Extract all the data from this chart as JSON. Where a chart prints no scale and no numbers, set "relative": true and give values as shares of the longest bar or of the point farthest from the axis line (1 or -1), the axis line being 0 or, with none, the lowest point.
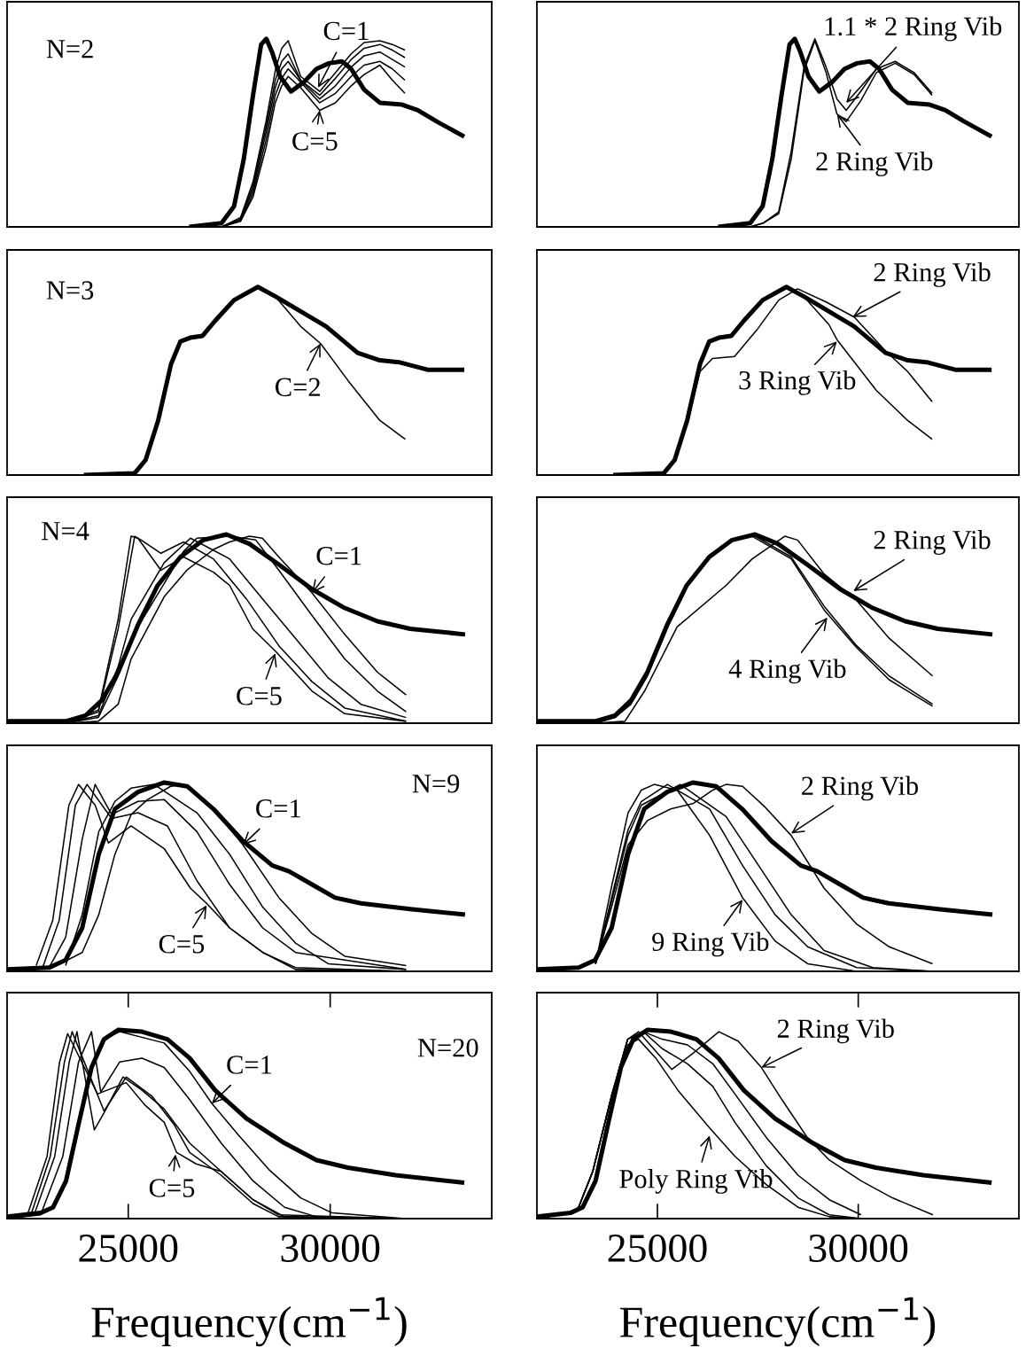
{
  "chart_data": [
    {
      "type": "line",
      "relative": true,
      "xlim": [
        22000,
        34000
      ],
      "tick_labels": false,
      "annotations": [
        "N=2",
        {
          "text": "C=1",
          "x": 29700,
          "y": 0.74
        },
        {
          "text": "C=5",
          "x": 29740,
          "y": 0.62
        }
      ],
      "series": [
        {
          "color": "#000000",
          "x": [
            26510,
            27310,
            27620,
            27860,
            28090,
            28290,
            28420,
            28560,
            28760,
            29030,
            29350,
            29660,
            29970,
            30290,
            30520,
            30840,
            31230,
            31780,
            32170,
            32640,
            33320
          ],
          "values": [
            0,
            0.02,
            0.11,
            0.36,
            0.7,
            0.97,
            1.0,
            0.93,
            0.8,
            0.72,
            0.77,
            0.84,
            0.87,
            0.88,
            0.84,
            0.73,
            0.66,
            0.65,
            0.62,
            0.56,
            0.48
          ]
        },
        {
          "color": "#000000",
          "x": [
            27310,
            27780,
            28090,
            28410,
            28640,
            28800,
            28960,
            29270,
            29740,
            30130,
            30520,
            30840,
            31230,
            31540,
            31850
          ],
          "values": [
            0,
            0.05,
            0.24,
            0.56,
            0.83,
            0.95,
            0.99,
            0.8,
            0.72,
            0.82,
            0.92,
            0.98,
            0.99,
            0.97,
            0.94
          ]
        },
        {
          "color": "#000000",
          "x": [
            27310,
            27780,
            28090,
            28410,
            28640,
            28800,
            28960,
            29270,
            29740,
            30130,
            30520,
            30840,
            31230,
            31540,
            31850
          ],
          "values": [
            0,
            0.04,
            0.22,
            0.53,
            0.78,
            0.88,
            0.92,
            0.78,
            0.7,
            0.79,
            0.89,
            0.95,
            0.97,
            0.94,
            0.9
          ]
        },
        {
          "color": "#000000",
          "x": [
            27310,
            27780,
            28090,
            28410,
            28640,
            28800,
            28960,
            29270,
            29740,
            30130,
            30520,
            30840,
            31230,
            31540,
            31850
          ],
          "values": [
            0,
            0.04,
            0.2,
            0.5,
            0.74,
            0.84,
            0.88,
            0.78,
            0.68,
            0.75,
            0.85,
            0.91,
            0.93,
            0.89,
            0.85
          ]
        },
        {
          "color": "#000000",
          "x": [
            27310,
            27780,
            28090,
            28410,
            28640,
            28800,
            28960,
            29270,
            29740,
            30130,
            30520,
            30840,
            31230,
            31540,
            31850
          ],
          "values": [
            0,
            0.03,
            0.18,
            0.46,
            0.7,
            0.79,
            0.84,
            0.77,
            0.66,
            0.71,
            0.8,
            0.86,
            0.88,
            0.84,
            0.78
          ]
        },
        {
          "color": "#000000",
          "x": [
            27310,
            27780,
            28090,
            28410,
            28640,
            28800,
            28960,
            29270,
            29740,
            30130,
            30520,
            30840,
            31230,
            31540,
            31850
          ],
          "values": [
            0,
            0.03,
            0.16,
            0.42,
            0.66,
            0.75,
            0.8,
            0.74,
            0.62,
            0.66,
            0.75,
            0.81,
            0.86,
            0.78,
            0.71
          ]
        }
      ]
    },
    {
      "type": "line",
      "relative": true,
      "xlim": [
        22000,
        34000
      ],
      "tick_labels": false,
      "annotations": [
        {
          "text": "1.1 * 2 Ring Vib",
          "x": 29700,
          "y": 0.66
        },
        {
          "text": "2 Ring Vib",
          "x": 29470,
          "y": 0.6
        }
      ],
      "series": [
        {
          "color": "#000000",
          "x": [
            26510,
            27310,
            27620,
            27860,
            28090,
            28290,
            28420,
            28560,
            28760,
            29030,
            29350,
            29660,
            29970,
            30290,
            30520,
            30840,
            31230,
            31780,
            32170,
            32640,
            33320
          ],
          "values": [
            0,
            0.02,
            0.11,
            0.36,
            0.7,
            0.97,
            1.0,
            0.93,
            0.8,
            0.72,
            0.77,
            0.84,
            0.87,
            0.88,
            0.84,
            0.73,
            0.66,
            0.65,
            0.62,
            0.56,
            0.48
          ]
        },
        {
          "color": "#000000",
          "x": [
            27310,
            27630,
            28020,
            28330,
            28650,
            28920,
            29200,
            29470,
            29700,
            30060,
            30450,
            30920,
            31390,
            31840
          ],
          "values": [
            0,
            0.02,
            0.08,
            0.4,
            0.85,
            1.0,
            0.85,
            0.68,
            0.62,
            0.72,
            0.84,
            0.88,
            0.82,
            0.71
          ]
        },
        {
          "color": "#000000",
          "x": [
            27310,
            27630,
            28020,
            28330,
            28650,
            28920,
            29200,
            29470,
            29700,
            30060,
            30450,
            30920,
            31390,
            31840
          ],
          "values": [
            0,
            0.02,
            0.07,
            0.36,
            0.83,
            0.99,
            0.82,
            0.6,
            0.56,
            0.67,
            0.82,
            0.87,
            0.81,
            0.7
          ]
        }
      ]
    },
    {
      "type": "line",
      "relative": true,
      "xlim": [
        22000,
        34000
      ],
      "tick_labels": false,
      "annotations": [
        "N=3",
        {
          "text": "C=2",
          "x": 29760,
          "y": 0.7
        }
      ],
      "series": [
        {
          "color": "#000000",
          "x": [
            23900,
            25160,
            25430,
            25740,
            26060,
            26290,
            26530,
            26840,
            27150,
            27620,
            28210,
            28640,
            29270,
            29900,
            30680,
            31230,
            31700,
            32410,
            33320
          ],
          "values": [
            0,
            0.01,
            0.08,
            0.29,
            0.59,
            0.71,
            0.73,
            0.74,
            0.82,
            0.93,
            1.0,
            0.95,
            0.87,
            0.79,
            0.65,
            0.61,
            0.6,
            0.56,
            0.56
          ]
        },
        {
          "color": "#000000",
          "x": [
            23900,
            25160,
            25430,
            25740,
            26060,
            26290,
            26530,
            26840,
            27150,
            27620,
            28210,
            28640,
            29270,
            29760,
            30450,
            31230,
            31860
          ],
          "values": [
            0,
            0.01,
            0.08,
            0.29,
            0.59,
            0.71,
            0.73,
            0.74,
            0.82,
            0.93,
            1.0,
            0.95,
            0.79,
            0.7,
            0.5,
            0.29,
            0.19
          ]
        }
      ]
    },
    {
      "type": "line",
      "relative": true,
      "xlim": [
        22000,
        34000
      ],
      "tick_labels": false,
      "annotations": [
        {
          "text": "2 Ring Vib",
          "x": 29860,
          "y": 0.84
        },
        {
          "text": "3 Ring Vib",
          "x": 29470,
          "y": 0.71
        }
      ],
      "series": [
        {
          "color": "#000000",
          "x": [
            23900,
            25160,
            25430,
            25740,
            26060,
            26290,
            26530,
            26840,
            27150,
            27620,
            28210,
            28640,
            29270,
            29900,
            30680,
            31230,
            31700,
            32410,
            33320
          ],
          "values": [
            0,
            0.01,
            0.08,
            0.29,
            0.59,
            0.71,
            0.73,
            0.74,
            0.82,
            0.93,
            1.0,
            0.95,
            0.87,
            0.79,
            0.65,
            0.61,
            0.6,
            0.56,
            0.56
          ]
        },
        {
          "color": "#000000",
          "x": [
            23900,
            25160,
            25430,
            25750,
            26060,
            26370,
            26920,
            27470,
            28020,
            28490,
            29200,
            29900,
            30680,
            31230,
            31840
          ],
          "values": [
            0,
            0.01,
            0.08,
            0.29,
            0.55,
            0.62,
            0.63,
            0.77,
            0.93,
            0.99,
            0.92,
            0.84,
            0.66,
            0.55,
            0.39
          ]
        },
        {
          "color": "#000000",
          "x": [
            23900,
            25160,
            25430,
            25740,
            26060,
            26290,
            26530,
            26840,
            27150,
            27620,
            28210,
            28640,
            29270,
            29470,
            30450,
            31230,
            31840
          ],
          "values": [
            0,
            0.01,
            0.08,
            0.29,
            0.59,
            0.71,
            0.73,
            0.74,
            0.82,
            0.93,
            1.0,
            0.95,
            0.8,
            0.72,
            0.45,
            0.29,
            0.19
          ]
        }
      ]
    },
    {
      "type": "line",
      "relative": true,
      "xlim": [
        22000,
        34000
      ],
      "tick_labels": false,
      "annotations": [
        "N=4",
        {
          "text": "C=1",
          "x": 29550,
          "y": 0.69
        },
        {
          "text": "C=5",
          "x": 28640,
          "y": 0.37
        }
      ],
      "series": [
        {
          "color": "#000000",
          "x": [
            22000,
            23450,
            23940,
            24340,
            24750,
            25240,
            25730,
            26290,
            26860,
            27430,
            28000,
            28730,
            29550,
            30360,
            31170,
            31980,
            33340
          ],
          "values": [
            0.01,
            0.01,
            0.04,
            0.12,
            0.27,
            0.52,
            0.73,
            0.88,
            0.97,
            1.0,
            0.95,
            0.84,
            0.71,
            0.61,
            0.54,
            0.5,
            0.47
          ]
        },
        {
          "color": "#000000",
          "x": [
            23450,
            24260,
            24750,
            25070,
            25890,
            26450,
            27110,
            27510,
            28000,
            28320,
            28730,
            29550,
            30360,
            31170,
            31880
          ],
          "values": [
            0,
            0.01,
            0.1,
            0.34,
            0.67,
            0.81,
            0.92,
            0.96,
            0.99,
            0.98,
            0.88,
            0.69,
            0.47,
            0.27,
            0.15
          ]
        },
        {
          "color": "#000000",
          "x": [
            23450,
            24260,
            24750,
            25070,
            25890,
            26370,
            26700,
            27510,
            28160,
            28730,
            29550,
            30360,
            31170,
            31880
          ],
          "values": [
            0,
            0.03,
            0.25,
            0.45,
            0.74,
            0.91,
            0.98,
            0.99,
            0.97,
            0.81,
            0.57,
            0.34,
            0.17,
            0.06
          ]
        },
        {
          "color": "#000000",
          "x": [
            23450,
            24260,
            24750,
            25070,
            25890,
            26540,
            27510,
            28320,
            29140,
            29950,
            30760,
            31880
          ],
          "values": [
            0,
            0.04,
            0.3,
            0.55,
            0.85,
            0.98,
            0.87,
            0.66,
            0.45,
            0.24,
            0.1,
            0.03
          ]
        },
        {
          "color": "#000000",
          "x": [
            23450,
            24260,
            24750,
            25160,
            25320,
            25810,
            26370,
            27110,
            27920,
            28730,
            29550,
            30360,
            31880
          ],
          "values": [
            0,
            0.06,
            0.5,
            0.99,
            0.97,
            0.9,
            0.96,
            0.87,
            0.66,
            0.41,
            0.22,
            0.08,
            0.01
          ]
        },
        {
          "color": "#000000",
          "x": [
            23450,
            24260,
            24750,
            25070,
            25240,
            25810,
            26370,
            27110,
            27510,
            28080,
            28650,
            29550,
            30360,
            31880
          ],
          "values": [
            0,
            0.07,
            0.55,
            0.99,
            0.98,
            0.81,
            0.88,
            0.8,
            0.73,
            0.5,
            0.38,
            0.17,
            0.05,
            0.01
          ]
        }
      ]
    },
    {
      "type": "line",
      "relative": true,
      "xlim": [
        22000,
        34000
      ],
      "tick_labels": false,
      "annotations": [
        {
          "text": "2 Ring Vib",
          "x": 29880,
          "y": 0.7
        },
        {
          "text": "4 Ring Vib",
          "x": 29230,
          "y": 0.56
        }
      ],
      "series": [
        {
          "color": "#000000",
          "x": [
            22000,
            23450,
            23940,
            24340,
            24750,
            25240,
            25730,
            26290,
            26860,
            27430,
            28000,
            28730,
            29550,
            30360,
            31170,
            31980,
            33340
          ],
          "values": [
            0.01,
            0.01,
            0.04,
            0.12,
            0.27,
            0.52,
            0.73,
            0.88,
            0.97,
            1.0,
            0.95,
            0.84,
            0.71,
            0.61,
            0.54,
            0.5,
            0.47
          ]
        },
        {
          "color": "#000000",
          "x": [
            23450,
            24190,
            24680,
            25490,
            26710,
            27360,
            28170,
            28490,
            29150,
            29960,
            30770,
            31850
          ],
          "values": [
            0,
            0.01,
            0.17,
            0.51,
            0.73,
            0.87,
            0.99,
            0.97,
            0.79,
            0.65,
            0.45,
            0.25
          ]
        },
        {
          "color": "#000000",
          "x": [
            23450,
            23940,
            24340,
            24750,
            25240,
            25730,
            26290,
            26860,
            27360,
            28330,
            29150,
            29960,
            30770,
            31850
          ],
          "values": [
            0,
            0.03,
            0.11,
            0.27,
            0.52,
            0.74,
            0.89,
            0.97,
            1.0,
            0.88,
            0.62,
            0.41,
            0.25,
            0.1
          ]
        },
        {
          "color": "#000000",
          "x": [
            23450,
            23940,
            24340,
            24750,
            25240,
            25730,
            26290,
            26860,
            27360,
            28330,
            29150,
            29960,
            30770,
            31850
          ],
          "values": [
            0,
            0.03,
            0.1,
            0.25,
            0.5,
            0.72,
            0.88,
            0.97,
            0.99,
            0.87,
            0.6,
            0.4,
            0.23,
            0.09
          ]
        }
      ]
    },
    {
      "type": "line",
      "relative": true,
      "xlim": [
        22000,
        34000
      ],
      "tick_labels": false,
      "annotations": [
        "N=9",
        {
          "text": "C=1",
          "x": 27840,
          "y": 0.67
        },
        {
          "text": "C=5",
          "x": 26940,
          "y": 0.35
        }
      ],
      "series": [
        {
          "color": "#000000",
          "x": [
            22000,
            23040,
            23450,
            23860,
            24270,
            24670,
            25240,
            25890,
            26460,
            27110,
            27840,
            28570,
            28980,
            29550,
            30120,
            30760,
            31980,
            33340
          ],
          "values": [
            0.01,
            0.02,
            0.06,
            0.23,
            0.62,
            0.86,
            0.95,
            1.0,
            0.98,
            0.86,
            0.69,
            0.56,
            0.53,
            0.46,
            0.39,
            0.36,
            0.33,
            0.3
          ]
        },
        {
          "color": "#000000",
          "x": [
            23040,
            23860,
            24270,
            24670,
            25070,
            25480,
            26050,
            26380,
            27110,
            27840,
            28730,
            29550,
            30360,
            31880
          ],
          "values": [
            0.01,
            0.1,
            0.3,
            0.62,
            0.83,
            0.91,
            0.98,
            0.99,
            0.86,
            0.67,
            0.39,
            0.2,
            0.08,
            0.03
          ]
        },
        {
          "color": "#000000",
          "x": [
            23450,
            23860,
            24270,
            24670,
            25070,
            25640,
            26700,
            27510,
            28330,
            29140,
            29950,
            31880
          ],
          "values": [
            0.03,
            0.3,
            0.74,
            0.9,
            0.97,
            0.99,
            0.84,
            0.62,
            0.34,
            0.15,
            0.04,
            0.01
          ]
        },
        {
          "color": "#000000",
          "x": [
            23040,
            23450,
            23860,
            24180,
            24590,
            25240,
            25890,
            26700,
            27510,
            28330,
            29140,
            31880
          ],
          "values": [
            0.02,
            0.18,
            0.7,
            0.99,
            0.83,
            0.9,
            0.91,
            0.74,
            0.46,
            0.23,
            0.1,
            0.01
          ]
        },
        {
          "color": "#000000",
          "x": [
            22880,
            23290,
            23690,
            23980,
            24590,
            25240,
            25970,
            26700,
            27510,
            28330,
            29140,
            31880
          ],
          "values": [
            0.02,
            0.27,
            0.88,
            0.99,
            0.81,
            0.84,
            0.77,
            0.48,
            0.23,
            0.1,
            0.02,
            0
          ]
        },
        {
          "color": "#000000",
          "x": [
            22720,
            23130,
            23530,
            23770,
            24180,
            24510,
            25070,
            25890,
            26540,
            26940,
            27510,
            28330,
            29140,
            31880
          ],
          "values": [
            0.03,
            0.27,
            0.88,
            0.99,
            0.88,
            0.68,
            0.77,
            0.65,
            0.44,
            0.36,
            0.23,
            0.1,
            0.01,
            0
          ]
        }
      ]
    },
    {
      "type": "line",
      "relative": true,
      "xlim": [
        22000,
        34000
      ],
      "tick_labels": false,
      "annotations": [
        {
          "text": "2 Ring Vib",
          "x": 28330,
          "y": 0.73
        },
        {
          "text": "9 Ring Vib",
          "x": 27120,
          "y": 0.38
        }
      ],
      "series": [
        {
          "color": "#000000",
          "x": [
            22000,
            23040,
            23450,
            23860,
            24270,
            24670,
            25240,
            25890,
            26460,
            27110,
            27840,
            28570,
            28980,
            29550,
            30120,
            30760,
            31980,
            33340
          ],
          "values": [
            0.01,
            0.02,
            0.06,
            0.23,
            0.62,
            0.86,
            0.95,
            1.0,
            0.98,
            0.86,
            0.69,
            0.56,
            0.53,
            0.46,
            0.39,
            0.36,
            0.33,
            0.3
          ]
        },
        {
          "color": "#000000",
          "x": [
            23460,
            23870,
            24270,
            24760,
            25330,
            25900,
            26380,
            26710,
            27120,
            27680,
            28330,
            29150,
            29960,
            30770,
            31850
          ],
          "values": [
            0.04,
            0.35,
            0.67,
            0.8,
            0.86,
            0.89,
            0.96,
            0.99,
            0.98,
            0.87,
            0.72,
            0.44,
            0.25,
            0.13,
            0.04
          ]
        },
        {
          "color": "#000000",
          "x": [
            23460,
            23870,
            24270,
            24600,
            24920,
            25490,
            26300,
            27120,
            27930,
            28740,
            29960
          ],
          "values": [
            0.04,
            0.46,
            0.84,
            0.96,
            0.99,
            0.96,
            0.72,
            0.39,
            0.16,
            0.04,
            0
          ]
        },
        {
          "color": "#000000",
          "x": [
            23460,
            23870,
            24270,
            24600,
            25250,
            26300,
            27120,
            27930,
            28740,
            29960,
            31850
          ],
          "values": [
            0.04,
            0.4,
            0.75,
            0.9,
            0.99,
            0.86,
            0.56,
            0.3,
            0.13,
            0.02,
            0
          ]
        },
        {
          "color": "#000000",
          "x": [
            23460,
            23870,
            24270,
            24600,
            25570,
            26710,
            27520,
            28330,
            29150,
            30360,
            31850
          ],
          "values": [
            0.04,
            0.38,
            0.72,
            0.88,
            0.99,
            0.82,
            0.56,
            0.3,
            0.11,
            0.02,
            0
          ]
        }
      ]
    },
    {
      "type": "line",
      "relative": true,
      "xlim": [
        22000,
        34000
      ],
      "tick_labels": "x",
      "xlabel": "Frequency(cm$^{−1}$)",
      "xticks": [
        25000,
        30000
      ],
      "annotations": [
        "N=20",
        {
          "text": "C=1",
          "x": 27070,
          "y": 0.61
        },
        {
          "text": "C=5",
          "x": 26170,
          "y": 0.34
        }
      ],
      "series": [
        {
          "color": "#000000",
          "x": [
            22000,
            22830,
            23140,
            23460,
            23770,
            24090,
            24400,
            24750,
            25340,
            25970,
            26520,
            27150,
            27930,
            28870,
            29660,
            30440,
            31620,
            33320
          ],
          "values": [
            0.01,
            0.03,
            0.06,
            0.2,
            0.5,
            0.8,
            0.95,
            1.0,
            0.99,
            0.95,
            0.85,
            0.68,
            0.53,
            0.4,
            0.31,
            0.27,
            0.23,
            0.19
          ]
        },
        {
          "color": "#000000",
          "x": [
            22000,
            22830,
            23140,
            23460,
            23770,
            24090,
            24400,
            24790,
            25890,
            26520,
            27070,
            27700,
            28480,
            29270,
            30050,
            31860
          ],
          "values": [
            0.01,
            0.03,
            0.06,
            0.2,
            0.5,
            0.8,
            0.95,
            0.99,
            0.93,
            0.78,
            0.61,
            0.45,
            0.26,
            0.11,
            0.03,
            0
          ]
        },
        {
          "color": "#000000",
          "x": [
            22000,
            22830,
            23380,
            23770,
            24090,
            24320,
            24790,
            25340,
            25890,
            26520,
            27300,
            28090,
            28870,
            29660,
            31860
          ],
          "values": [
            0,
            0.02,
            0.33,
            0.83,
            0.99,
            0.67,
            0.83,
            0.85,
            0.8,
            0.63,
            0.4,
            0.2,
            0.06,
            0.01,
            0
          ]
        },
        {
          "color": "#000000",
          "x": [
            22000,
            22670,
            23180,
            23540,
            23730,
            24160,
            24400,
            24870,
            25340,
            25890,
            26520,
            27300,
            28090,
            28870,
            31860
          ],
          "values": [
            0,
            0.02,
            0.33,
            0.83,
            0.99,
            0.47,
            0.56,
            0.75,
            0.68,
            0.58,
            0.4,
            0.25,
            0.1,
            0.01,
            0
          ]
        },
        {
          "color": "#000000",
          "x": [
            22000,
            22590,
            23070,
            23420,
            23610,
            24400,
            24950,
            25580,
            26130,
            26520,
            27300,
            28090,
            28720,
            31860
          ],
          "values": [
            0,
            0.02,
            0.33,
            0.83,
            0.99,
            0.57,
            0.75,
            0.65,
            0.5,
            0.35,
            0.23,
            0.08,
            0.01,
            0
          ]
        },
        {
          "color": "#000000",
          "x": [
            22000,
            22520,
            22990,
            23300,
            23500,
            24240,
            24950,
            25420,
            25890,
            26200,
            26680,
            27300,
            28090,
            28720,
            31860
          ],
          "values": [
            0,
            0.03,
            0.33,
            0.83,
            0.98,
            0.66,
            0.72,
            0.6,
            0.51,
            0.35,
            0.29,
            0.25,
            0.1,
            0.02,
            0
          ]
        }
      ]
    },
    {
      "type": "line",
      "relative": true,
      "xlim": [
        22000,
        34000
      ],
      "tick_labels": "x",
      "xlabel": "Frequency(cm$^{−1}$)",
      "xticks": [
        25000,
        30000
      ],
      "annotations": [
        {
          "text": "2 Ring Vib",
          "x": 27590,
          "y": 0.8
        },
        {
          "text": "Poly Ring Vib",
          "x": 26300,
          "y": 0.44
        }
      ],
      "series": [
        {
          "color": "#000000",
          "x": [
            22000,
            22830,
            23140,
            23460,
            23770,
            24090,
            24400,
            24750,
            25340,
            25970,
            26520,
            27150,
            27930,
            28870,
            29660,
            30440,
            31620,
            33320
          ],
          "values": [
            0.01,
            0.03,
            0.06,
            0.2,
            0.5,
            0.8,
            0.95,
            1.0,
            0.99,
            0.95,
            0.85,
            0.68,
            0.53,
            0.4,
            0.31,
            0.27,
            0.23,
            0.19
          ]
        },
        {
          "color": "#000000",
          "x": [
            22000,
            23000,
            23390,
            23870,
            24260,
            24530,
            25360,
            25910,
            26530,
            27010,
            27590,
            28100,
            28730,
            29280,
            30070,
            30850,
            31860
          ],
          "values": [
            0,
            0.04,
            0.25,
            0.66,
            0.95,
            0.99,
            0.79,
            0.88,
            0.99,
            0.94,
            0.8,
            0.63,
            0.43,
            0.31,
            0.2,
            0.11,
            0.02
          ]
        },
        {
          "color": "#000000",
          "x": [
            22000,
            23000,
            23390,
            23870,
            24260,
            24530,
            24960,
            25510,
            26300,
            26930,
            27710,
            28500,
            29280,
            30070
          ],
          "values": [
            0,
            0.04,
            0.25,
            0.66,
            0.92,
            0.95,
            0.85,
            0.68,
            0.48,
            0.33,
            0.18,
            0.06,
            0.01,
            0
          ]
        },
        {
          "color": "#000000",
          "x": [
            22000,
            23000,
            23390,
            23870,
            24260,
            24650,
            25120,
            25750,
            26380,
            26930,
            27710,
            28500,
            29280,
            30070
          ],
          "values": [
            0,
            0.04,
            0.25,
            0.66,
            0.95,
            0.99,
            0.9,
            0.82,
            0.7,
            0.51,
            0.28,
            0.11,
            0.02,
            0
          ]
        },
        {
          "color": "#000000",
          "x": [
            22000,
            23000,
            23390,
            23870,
            24260,
            24650,
            25120,
            25750,
            26380,
            26930,
            27710,
            28500,
            29280,
            30070
          ],
          "values": [
            0,
            0.04,
            0.25,
            0.66,
            0.95,
            0.99,
            0.95,
            0.92,
            0.82,
            0.66,
            0.43,
            0.23,
            0.1,
            0.02
          ]
        }
      ]
    }
  ]
}
